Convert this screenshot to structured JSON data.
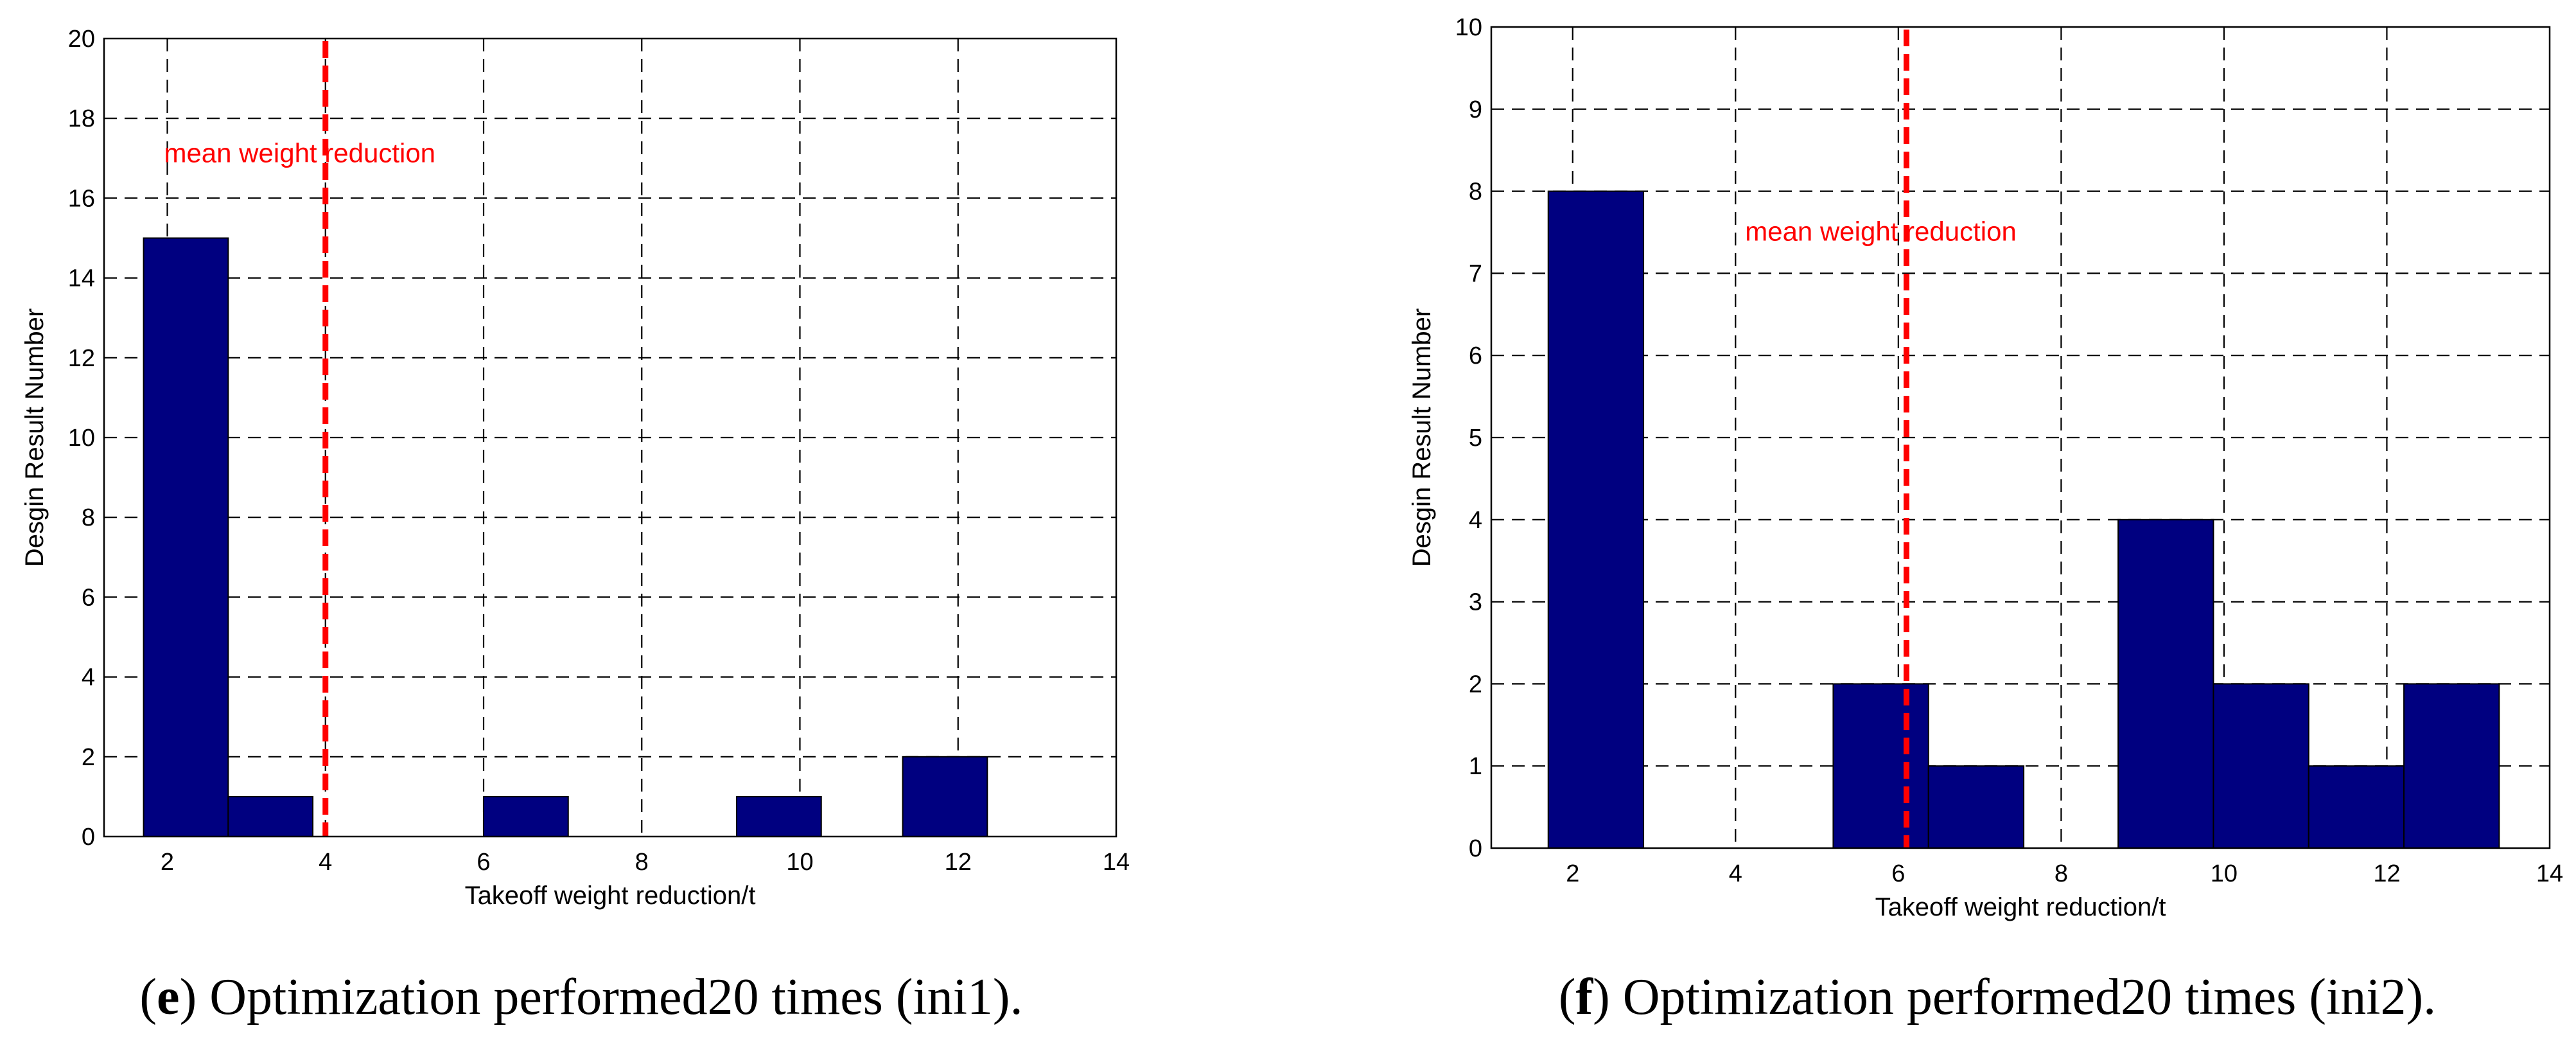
{
  "colors": {
    "bar": "#000080",
    "mean_line": "#ff0000",
    "grid": "#000000"
  },
  "chart_data": [
    {
      "type": "bar",
      "xlabel": "Takeoff weight reduction/t",
      "ylabel": "Desgin Result Number",
      "xlim": [
        1.2,
        14
      ],
      "ylim": [
        0,
        20
      ],
      "xticks": [
        2,
        4,
        6,
        8,
        10,
        12,
        14
      ],
      "yticks": [
        0,
        2,
        4,
        6,
        8,
        10,
        12,
        14,
        16,
        18,
        20
      ],
      "grid": true,
      "bin_width": 1.07,
      "bins": [
        {
          "x0": 1.7,
          "value": 15
        },
        {
          "x0": 2.77,
          "value": 1
        },
        {
          "x0": 6.0,
          "value": 1
        },
        {
          "x0": 9.2,
          "value": 1
        },
        {
          "x0": 11.3,
          "value": 2
        }
      ],
      "mean_line": {
        "x": 4.0,
        "label": "mean weight reduction"
      },
      "caption": {
        "letter": "e",
        "open": "(",
        "rest": ") Optimization performed20 times (ini1)."
      }
    },
    {
      "type": "bar",
      "xlabel": "Takeoff weight reduction/t",
      "ylabel": "Desgin Result Number",
      "xlim": [
        1.0,
        14
      ],
      "ylim": [
        0,
        10
      ],
      "xticks": [
        2,
        4,
        6,
        8,
        10,
        12,
        14
      ],
      "yticks": [
        0,
        1,
        2,
        3,
        4,
        5,
        6,
        7,
        8,
        9,
        10
      ],
      "grid": true,
      "bin_width": 1.17,
      "bins": [
        {
          "x0": 1.7,
          "value": 8
        },
        {
          "x0": 5.2,
          "value": 2
        },
        {
          "x0": 6.37,
          "value": 1
        },
        {
          "x0": 8.7,
          "value": 4
        },
        {
          "x0": 9.87,
          "value": 2
        },
        {
          "x0": 11.04,
          "value": 1
        },
        {
          "x0": 12.21,
          "value": 2
        }
      ],
      "mean_line": {
        "x": 6.1,
        "label": "mean weight reduction"
      },
      "caption": {
        "letter": "f",
        "open": "(",
        "rest": ") Optimization performed20 times (ini2)."
      }
    }
  ]
}
